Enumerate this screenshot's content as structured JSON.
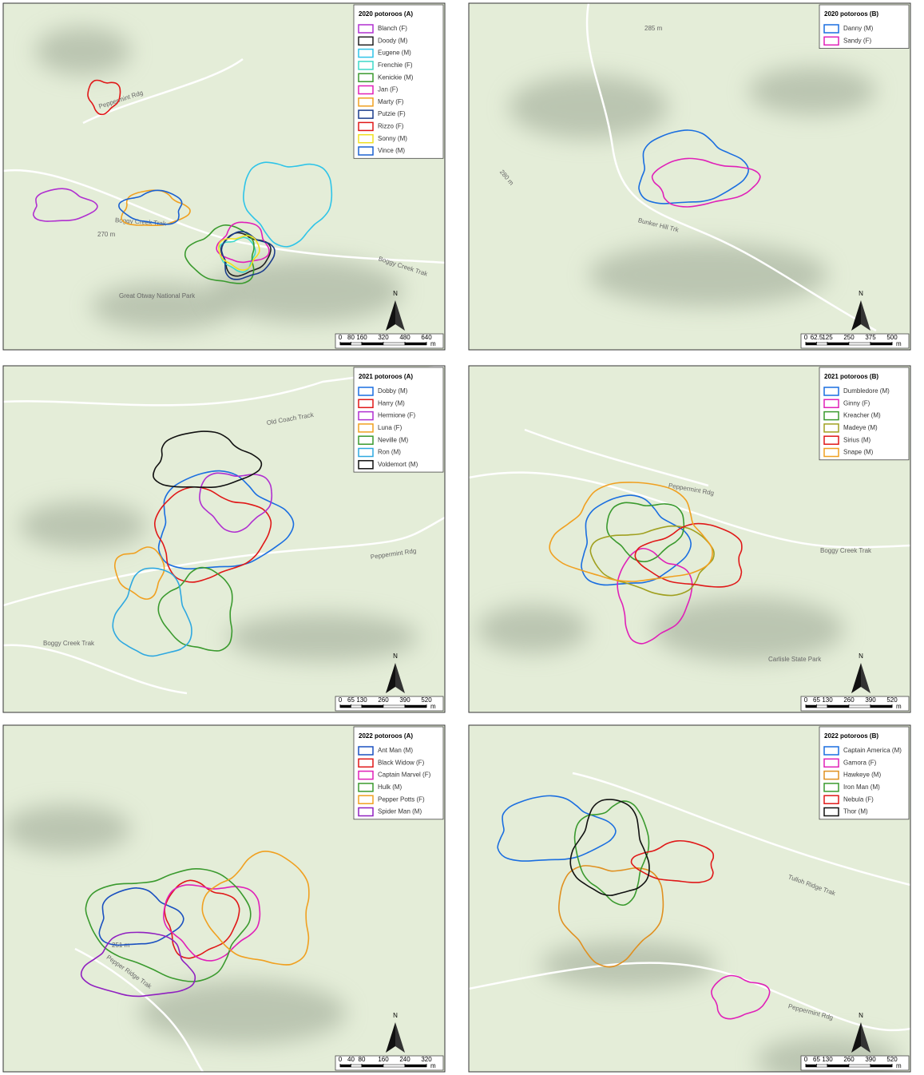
{
  "panels": [
    {
      "title": "2020 potoroos (A)",
      "legend": [
        {
          "label": "Blanch (F)",
          "color": "#b02fd0"
        },
        {
          "label": "Doody (M)",
          "color": "#222222"
        },
        {
          "label": "Eugene (M)",
          "color": "#2ec4e8"
        },
        {
          "label": "Frenchie (F)",
          "color": "#3dd9c8"
        },
        {
          "label": "Kenickie (M)",
          "color": "#3a9a2e"
        },
        {
          "label": "Jan (F)",
          "color": "#e020b8"
        },
        {
          "label": "Marty (F)",
          "color": "#f0a020"
        },
        {
          "label": "Putzie (F)",
          "color": "#1a3c8c"
        },
        {
          "label": "Rizzo (F)",
          "color": "#e01818"
        },
        {
          "label": "Sonny (M)",
          "color": "#f0e020"
        },
        {
          "label": "Vince (M)",
          "color": "#1a60d0"
        }
      ],
      "scale": {
        "ticks": [
          0,
          80,
          160,
          320,
          480,
          640
        ],
        "unit": "m"
      },
      "north": "N",
      "places": [
        "Peppermint Rdg",
        "Boggy Creek Trak",
        "270 m",
        "Boggy Creek Trak",
        "Great Otway National Park"
      ]
    },
    {
      "title": "2020 potoroos (B)",
      "legend": [
        {
          "label": "Danny (M)",
          "color": "#1a6ee0"
        },
        {
          "label": "Sandy (F)",
          "color": "#e020b8"
        }
      ],
      "scale": {
        "ticks": [
          0,
          62.5,
          125,
          250,
          375,
          500
        ],
        "unit": "m"
      },
      "north": "N",
      "places": [
        "285 m",
        "Bunker Hill Trk",
        "280 m"
      ]
    },
    {
      "title": "2021 potoroos (A)",
      "legend": [
        {
          "label": "Dobby (M)",
          "color": "#1a6ee0"
        },
        {
          "label": "Harry (M)",
          "color": "#e01818"
        },
        {
          "label": "Hermione (F)",
          "color": "#b02fd0"
        },
        {
          "label": "Luna (F)",
          "color": "#f0a020"
        },
        {
          "label": "Neville (M)",
          "color": "#3a9a2e"
        },
        {
          "label": "Ron (M)",
          "color": "#2ea8e0"
        },
        {
          "label": "Voldemort (M)",
          "color": "#111111"
        }
      ],
      "scale": {
        "ticks": [
          0,
          65,
          130,
          260,
          390,
          520
        ],
        "unit": "m"
      },
      "north": "N",
      "places": [
        "Old Coach Track",
        "Peppermint Rdg",
        "Boggy Creek Trak"
      ]
    },
    {
      "title": "2021 potoroos (B)",
      "legend": [
        {
          "label": "Dumbledore (M)",
          "color": "#1a6ee0"
        },
        {
          "label": "Ginny (F)",
          "color": "#e020b8"
        },
        {
          "label": "Kreacher (M)",
          "color": "#3a9a2e"
        },
        {
          "label": "Madeye (M)",
          "color": "#a0a020"
        },
        {
          "label": "Sirius (M)",
          "color": "#e01818"
        },
        {
          "label": "Snape (M)",
          "color": "#f0a020"
        }
      ],
      "scale": {
        "ticks": [
          0,
          65,
          130,
          260,
          390,
          520
        ],
        "unit": "m"
      },
      "north": "N",
      "places": [
        "Peppermint Rdg",
        "Boggy Creek Trak",
        "Carlisle State Park"
      ]
    },
    {
      "title": "2022 potoroos (A)",
      "legend": [
        {
          "label": "Ant Man (M)",
          "color": "#1a50c0"
        },
        {
          "label": "Black Widow (F)",
          "color": "#e01818"
        },
        {
          "label": "Captain Marvel (F)",
          "color": "#e020b8"
        },
        {
          "label": "Hulk (M)",
          "color": "#3a9a2e"
        },
        {
          "label": "Pepper Potts (F)",
          "color": "#f0a020"
        },
        {
          "label": "Spider Man (M)",
          "color": "#9020c0"
        }
      ],
      "scale": {
        "ticks": [
          0,
          40,
          80,
          160,
          240,
          320
        ],
        "unit": "m"
      },
      "north": "N",
      "places": [
        "Pepper Ridge Trak",
        "251 m"
      ]
    },
    {
      "title": "2022 potoroos (B)",
      "legend": [
        {
          "label": "Captain America (M)",
          "color": "#1a6ee0"
        },
        {
          "label": "Gamora (F)",
          "color": "#e020b8"
        },
        {
          "label": "Hawkeye (M)",
          "color": "#e09020"
        },
        {
          "label": "Iron Man (M)",
          "color": "#3a9a2e"
        },
        {
          "label": "Nebula (F)",
          "color": "#e01818"
        },
        {
          "label": "Thor (M)",
          "color": "#111111"
        }
      ],
      "scale": {
        "ticks": [
          0,
          65,
          130,
          260,
          390,
          520
        ],
        "unit": "m"
      },
      "north": "N",
      "places": [
        "Tulloh Ridge Trak",
        "Peppermint Rdg"
      ]
    }
  ]
}
